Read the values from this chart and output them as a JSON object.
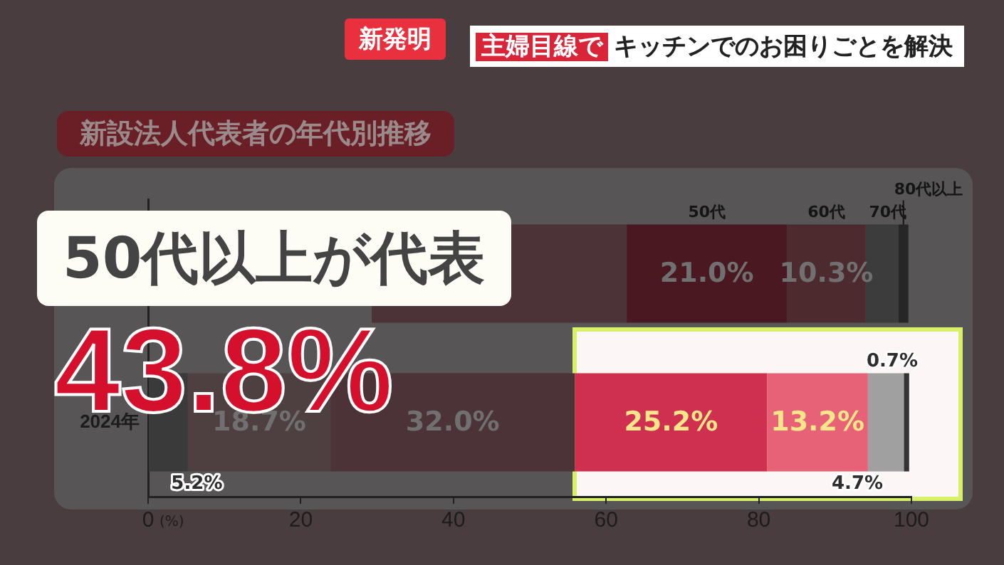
{
  "chart_data": {
    "type": "bar",
    "orientation": "horizontal",
    "stacked": true,
    "title": "新設法人代表者の年代別推移",
    "xlabel": "(%)",
    "categories": [
      null,
      "2024年"
    ],
    "series": [
      {
        "color": "#3a3a3a",
        "values": [
          null,
          5.2
        ],
        "value_labels": [
          null,
          "5.2%"
        ]
      },
      {
        "color": "#4e4041",
        "values": [
          null,
          18.7
        ],
        "value_labels": [
          null,
          "18.7%"
        ]
      },
      {
        "color": "#4b3337",
        "values": [
          33.4,
          32.0
        ],
        "base": [
          29.3,
          null
        ],
        "value_labels": [
          null,
          "32.0%"
        ]
      },
      {
        "name": "50代",
        "colors": [
          "#4a1820",
          "#d0304f"
        ],
        "values": [
          21.0,
          25.2
        ],
        "value_labels": [
          "21.0%",
          "25.2%"
        ]
      },
      {
        "name": "60代",
        "colors": [
          "#4d2a2e",
          "#e86277"
        ],
        "values": [
          10.3,
          13.2
        ],
        "value_labels": [
          "10.3%",
          "13.2%"
        ]
      },
      {
        "name": "70代",
        "colors": [
          "#3c3c3c",
          "#a0a0a0"
        ],
        "values": [
          4.3,
          4.7
        ],
        "value_labels": [
          null,
          "4.7%"
        ]
      },
      {
        "name": "80代以上",
        "colors": [
          "#262626",
          "#333333"
        ],
        "values": [
          1.3,
          0.7
        ],
        "value_labels": [
          null,
          "0.7%"
        ]
      }
    ],
    "xlim": [
      0,
      100
    ],
    "xticks": [
      0,
      20,
      40,
      60,
      80,
      100
    ],
    "grid": false,
    "legend": false,
    "annotations": [
      "新発明",
      "主婦目線で",
      "キッチンでのお困りごとを解決",
      "50代以上が代表",
      "43.8%"
    ]
  }
}
